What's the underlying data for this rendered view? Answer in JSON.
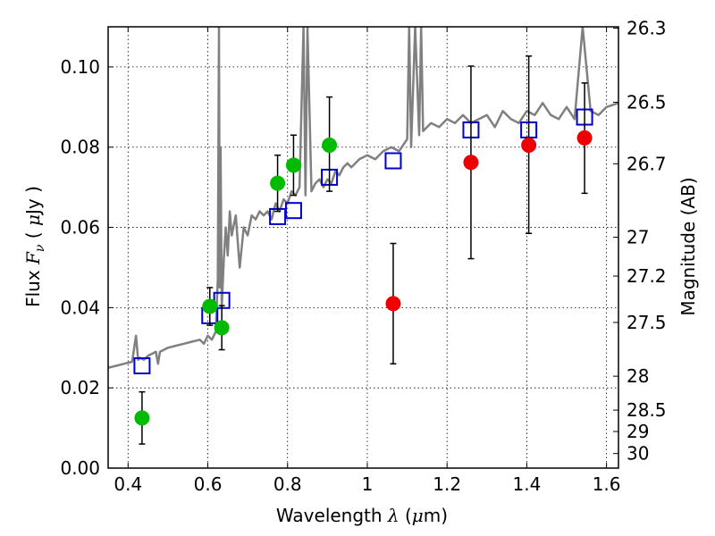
{
  "chart_data": {
    "type": "scatter",
    "title": "",
    "xlabel": "Wavelength  λ (μm)",
    "ylabel": "Flux  F_ν  ( μJy )",
    "y2label": "Magnitude (AB)",
    "xlim": [
      0.35,
      1.63
    ],
    "ylim": [
      0,
      0.11
    ],
    "grid": true,
    "x_ticks": [
      0.4,
      0.6,
      0.8,
      1.0,
      1.2,
      1.4,
      1.6
    ],
    "x_tick_labels": [
      "0.4",
      "0.6",
      "0.8",
      "1",
      "1.2",
      "1.4",
      "1.6"
    ],
    "y_ticks": [
      0,
      0.02,
      0.04,
      0.06,
      0.08,
      0.1
    ],
    "y_tick_labels": [
      "0.00",
      "0.02",
      "0.04",
      "0.06",
      "0.08",
      "0.10"
    ],
    "y2_ticks": [
      {
        "label": "26.3",
        "mag": 26.3
      },
      {
        "label": "26.5",
        "mag": 26.5
      },
      {
        "label": "26.7",
        "mag": 26.7
      },
      {
        "label": "27",
        "mag": 27.0
      },
      {
        "label": "27.2",
        "mag": 27.2
      },
      {
        "label": "27.5",
        "mag": 27.5
      },
      {
        "label": "28",
        "mag": 28.0
      },
      {
        "label": "28.5",
        "mag": 28.5
      },
      {
        "label": "29",
        "mag": 29.0
      },
      {
        "label": "30",
        "mag": 30.0
      }
    ],
    "series": [
      {
        "kind": "line",
        "color": "#808080",
        "x": [
          0.35,
          0.37,
          0.39,
          0.41,
          0.42,
          0.425,
          0.43,
          0.44,
          0.45,
          0.46,
          0.47,
          0.475,
          0.48,
          0.49,
          0.5,
          0.52,
          0.54,
          0.56,
          0.58,
          0.59,
          0.6,
          0.61,
          0.62,
          0.625,
          0.628,
          0.63,
          0.632,
          0.635,
          0.64,
          0.645,
          0.65,
          0.655,
          0.66,
          0.67,
          0.68,
          0.69,
          0.7,
          0.71,
          0.72,
          0.73,
          0.74,
          0.75,
          0.76,
          0.77,
          0.78,
          0.79,
          0.8,
          0.81,
          0.82,
          0.83,
          0.84,
          0.845,
          0.85,
          0.86,
          0.87,
          0.88,
          0.89,
          0.9,
          0.91,
          0.92,
          0.93,
          0.94,
          0.95,
          0.96,
          0.98,
          1.0,
          1.02,
          1.04,
          1.06,
          1.08,
          1.1,
          1.105,
          1.11,
          1.12,
          1.13,
          1.135,
          1.14,
          1.16,
          1.18,
          1.2,
          1.22,
          1.24,
          1.26,
          1.28,
          1.3,
          1.32,
          1.34,
          1.36,
          1.38,
          1.4,
          1.42,
          1.44,
          1.46,
          1.48,
          1.5,
          1.52,
          1.54,
          1.56,
          1.58,
          1.6,
          1.63
        ],
        "y": [
          0.025,
          0.0255,
          0.026,
          0.0265,
          0.033,
          0.027,
          0.0275,
          0.027,
          0.028,
          0.0285,
          0.029,
          0.026,
          0.029,
          0.0295,
          0.03,
          0.0305,
          0.031,
          0.0315,
          0.032,
          0.031,
          0.033,
          0.032,
          0.034,
          0.047,
          0.11,
          0.045,
          0.08,
          0.04,
          0.052,
          0.06,
          0.053,
          0.064,
          0.058,
          0.063,
          0.05,
          0.06,
          0.058,
          0.063,
          0.062,
          0.064,
          0.063,
          0.064,
          0.062,
          0.066,
          0.064,
          0.067,
          0.066,
          0.069,
          0.068,
          0.07,
          0.11,
          0.068,
          0.11,
          0.069,
          0.071,
          0.072,
          0.07,
          0.072,
          0.071,
          0.074,
          0.073,
          0.075,
          0.076,
          0.075,
          0.077,
          0.078,
          0.077,
          0.079,
          0.08,
          0.079,
          0.082,
          0.11,
          0.08,
          0.11,
          0.083,
          0.11,
          0.084,
          0.086,
          0.085,
          0.087,
          0.086,
          0.088,
          0.086,
          0.087,
          0.088,
          0.085,
          0.089,
          0.087,
          0.086,
          0.089,
          0.088,
          0.091,
          0.088,
          0.087,
          0.09,
          0.087,
          0.11,
          0.089,
          0.088,
          0.09,
          0.091
        ]
      },
      {
        "kind": "markers",
        "marker": "open-square",
        "color": "#0000cc",
        "x": [
          0.435,
          0.605,
          0.635,
          0.775,
          0.815,
          0.905,
          1.065,
          1.26,
          1.405,
          1.545
        ],
        "y": [
          0.0255,
          0.038,
          0.0418,
          0.0627,
          0.0642,
          0.0725,
          0.0766,
          0.0843,
          0.0843,
          0.0875
        ]
      },
      {
        "kind": "markers",
        "marker": "filled-circle",
        "color": "#00bb00",
        "x": [
          0.435,
          0.605,
          0.635,
          0.775,
          0.815,
          0.905
        ],
        "y": [
          0.0125,
          0.0403,
          0.035,
          0.071,
          0.0755,
          0.0805
        ],
        "err_low": [
          0.0065,
          0.0047,
          0.0055,
          0.007,
          0.0075,
          0.0115
        ],
        "err_high": [
          0.0065,
          0.0047,
          0.0055,
          0.007,
          0.0075,
          0.012
        ]
      },
      {
        "kind": "markers",
        "marker": "filled-circle",
        "color": "#ee0000",
        "x": [
          1.065,
          1.26,
          1.405,
          1.545
        ],
        "y": [
          0.041,
          0.0762,
          0.0805,
          0.0823
        ],
        "err_low": [
          0.015,
          0.024,
          0.022,
          0.0138
        ],
        "err_high": [
          0.015,
          0.024,
          0.0222,
          0.0137
        ]
      }
    ]
  }
}
